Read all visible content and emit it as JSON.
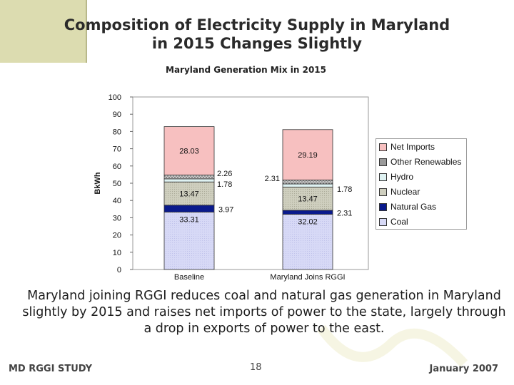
{
  "slide": {
    "title_line1": "Composition of Electricity Supply in Maryland",
    "title_line2": "in 2015 Changes Slightly",
    "caption": "Maryland joining RGGI reduces coal and natural gas generation in Maryland slightly by 2015 and raises net imports of power to the state, largely through a drop in exports of power to the east.",
    "footer_left": "MD RGGI STUDY",
    "footer_right": "January 2007",
    "page_number": "18"
  },
  "colors": {
    "coal": "#d7d9f6",
    "natural_gas": "#0a1a8c",
    "nuclear": "#cfcfbf",
    "hydro": "#dff2f2",
    "other_renewables": "#9a9a9a",
    "net_imports": "#f7c0c0",
    "plot_bg": "#ffffff"
  },
  "chart_data": {
    "type": "bar",
    "stacked": true,
    "title": "Maryland Generation Mix in 2015",
    "xlabel": "",
    "ylabel": "BkWh",
    "ylim": [
      0,
      100
    ],
    "yticks": [
      0,
      10,
      20,
      30,
      40,
      50,
      60,
      70,
      80,
      90,
      100
    ],
    "categories": [
      "Baseline",
      "Maryland Joins RGGI"
    ],
    "series": [
      {
        "name": "Coal",
        "values": [
          33.31,
          32.02
        ],
        "labels": [
          "33.31",
          "32.02"
        ]
      },
      {
        "name": "Natural Gas",
        "values": [
          3.97,
          2.31
        ],
        "labels": [
          "3.97",
          "2.31"
        ]
      },
      {
        "name": "Nuclear",
        "values": [
          13.47,
          13.47
        ],
        "labels": [
          "13.47",
          "13.47"
        ]
      },
      {
        "name": "Hydro",
        "values": [
          1.78,
          1.78
        ],
        "labels": [
          "1.78",
          "1.78"
        ]
      },
      {
        "name": "Other Renewables",
        "values": [
          2.26,
          2.31
        ],
        "labels": [
          "2.26",
          "2.31"
        ]
      },
      {
        "name": "Net Imports",
        "values": [
          28.03,
          29.19
        ],
        "labels": [
          "28.03",
          "29.19"
        ]
      }
    ],
    "legend": [
      "Net Imports",
      "Other Renewables",
      "Hydro",
      "Nuclear",
      "Natural Gas",
      "Coal"
    ],
    "legend_position": "right"
  }
}
